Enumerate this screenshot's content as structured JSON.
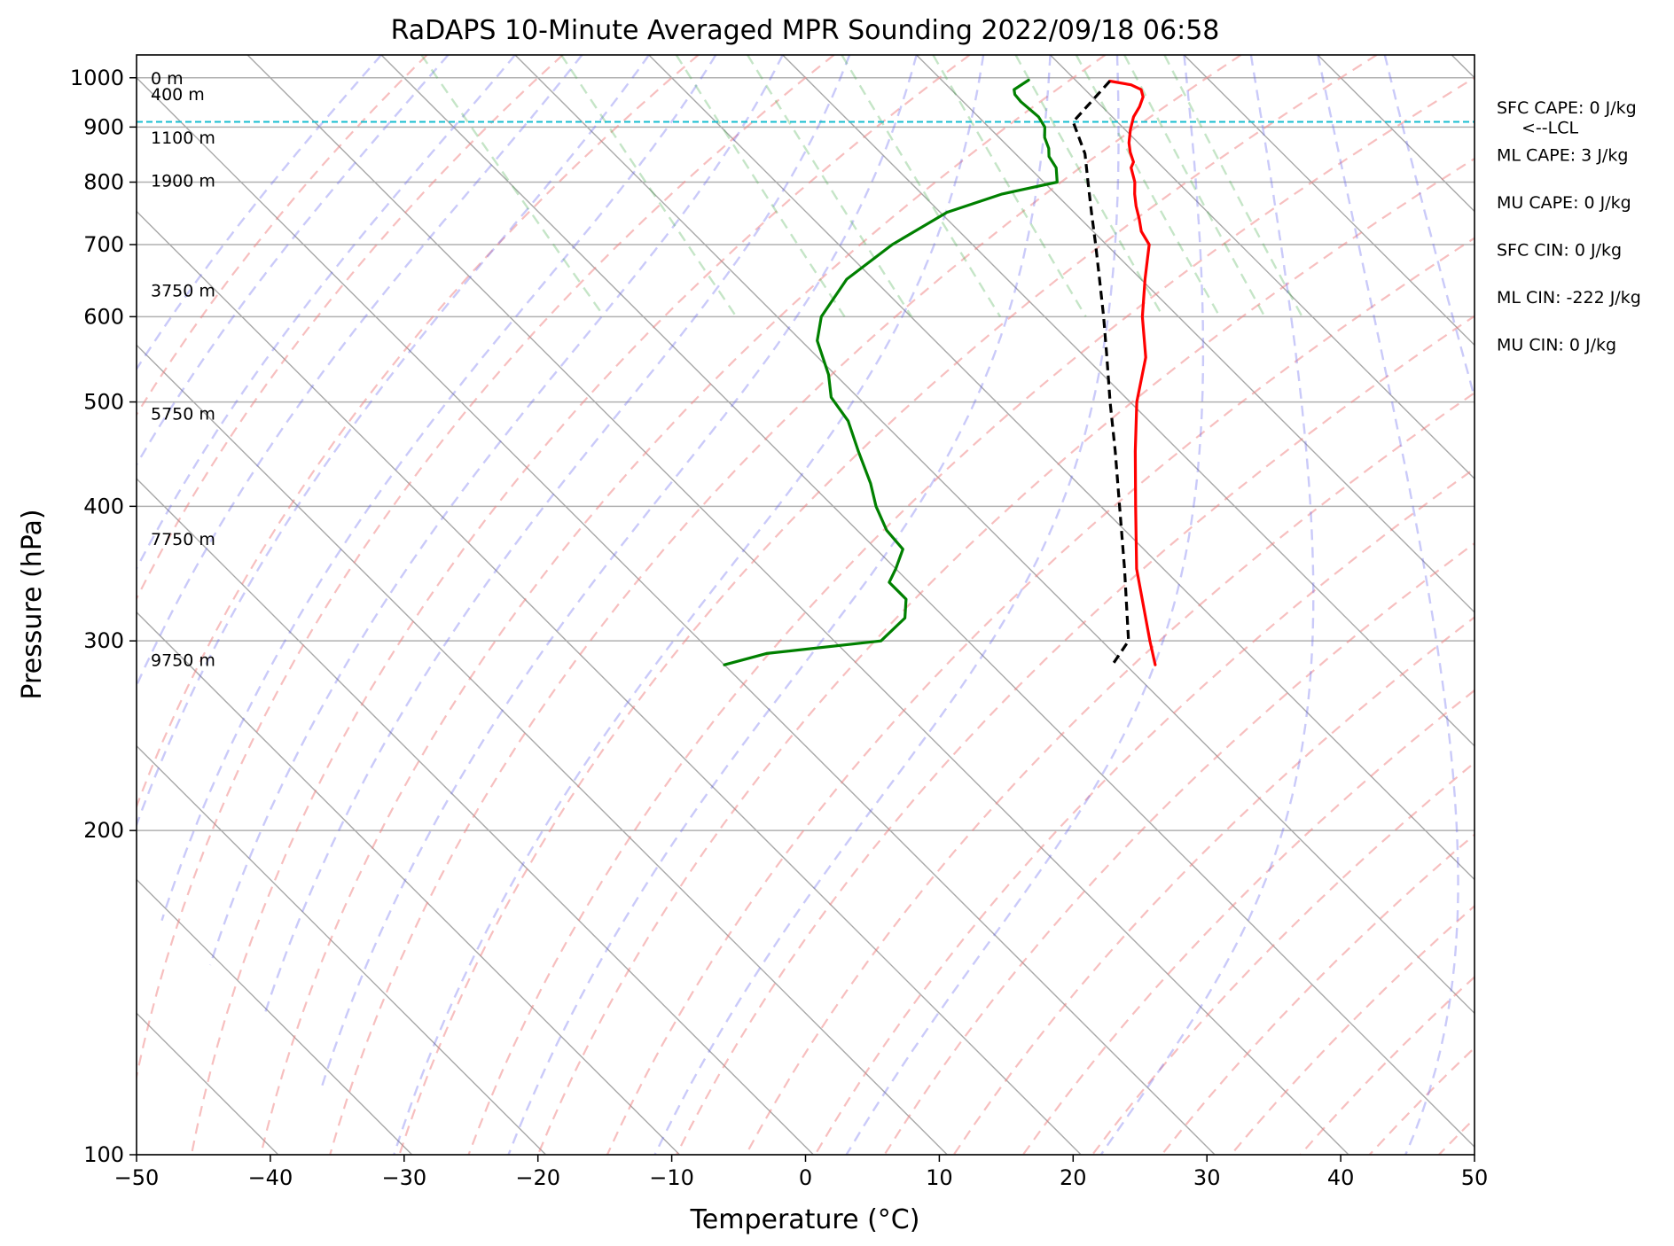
{
  "chart_data": {
    "type": "line",
    "title": "RaDAPS 10-Minute Averaged MPR Sounding 2022/09/18 06:58",
    "xlabel": "Temperature (°C)",
    "ylabel": "Pressure (hPa)",
    "xlim": [
      -50,
      50
    ],
    "ylim": [
      1050,
      100
    ],
    "y_scale": "log",
    "x_ticks": [
      -50,
      -40,
      -30,
      -20,
      -10,
      0,
      10,
      20,
      30,
      40,
      50
    ],
    "x_tick_labels": [
      "−50",
      "−40",
      "−30",
      "−20",
      "−10",
      "0",
      "10",
      "20",
      "30",
      "40",
      "50"
    ],
    "y_ticks": [
      100,
      200,
      300,
      400,
      500,
      600,
      700,
      800,
      900,
      1000
    ],
    "y_tick_labels": [
      "100",
      "200",
      "300",
      "400",
      "500",
      "600",
      "700",
      "800",
      "900",
      "1000"
    ],
    "skew_factor": 35,
    "grid": true,
    "series": [
      {
        "style": "solid",
        "color": "#ff0000",
        "points": [
          {
            "p": 993,
            "t": 22.5
          },
          {
            "p": 985,
            "t": 23.8
          },
          {
            "p": 975,
            "t": 24.2
          },
          {
            "p": 960,
            "t": 23.8
          },
          {
            "p": 940,
            "t": 22.8
          },
          {
            "p": 920,
            "t": 21.6
          },
          {
            "p": 895,
            "t": 20.4
          },
          {
            "p": 870,
            "t": 19.3
          },
          {
            "p": 853,
            "t": 18.7
          },
          {
            "p": 835,
            "t": 18.2
          },
          {
            "p": 825,
            "t": 17.6
          },
          {
            "p": 800,
            "t": 16.8
          },
          {
            "p": 780,
            "t": 15.9
          },
          {
            "p": 760,
            "t": 15.1
          },
          {
            "p": 740,
            "t": 14.4
          },
          {
            "p": 720,
            "t": 13.6
          },
          {
            "p": 700,
            "t": 13.2
          },
          {
            "p": 650,
            "t": 10.3
          },
          {
            "p": 600,
            "t": 7.3
          },
          {
            "p": 550,
            "t": 4.5
          },
          {
            "p": 500,
            "t": 0.5
          },
          {
            "p": 450,
            "t": -3.3
          },
          {
            "p": 400,
            "t": -7.4
          },
          {
            "p": 350,
            "t": -12.0
          },
          {
            "p": 300,
            "t": -16.4
          },
          {
            "p": 285,
            "t": -17.8
          }
        ]
      },
      {
        "style": "solid",
        "color": "#008000",
        "points": [
          {
            "p": 995,
            "t": 16.5
          },
          {
            "p": 975,
            "t": 14.7
          },
          {
            "p": 965,
            "t": 14.4
          },
          {
            "p": 950,
            "t": 14.3
          },
          {
            "p": 920,
            "t": 14.5
          },
          {
            "p": 900,
            "t": 14.2
          },
          {
            "p": 880,
            "t": 13.4
          },
          {
            "p": 860,
            "t": 12.9
          },
          {
            "p": 845,
            "t": 12.3
          },
          {
            "p": 825,
            "t": 12.0
          },
          {
            "p": 800,
            "t": 11.0
          },
          {
            "p": 780,
            "t": 6.0
          },
          {
            "p": 750,
            "t": 0.5
          },
          {
            "p": 700,
            "t": -6.0
          },
          {
            "p": 650,
            "t": -12.0
          },
          {
            "p": 600,
            "t": -16.7
          },
          {
            "p": 570,
            "t": -18.8
          },
          {
            "p": 530,
            "t": -20.5
          },
          {
            "p": 505,
            "t": -22.0
          },
          {
            "p": 480,
            "t": -22.5
          },
          {
            "p": 450,
            "t": -24.0
          },
          {
            "p": 420,
            "t": -25.5
          },
          {
            "p": 400,
            "t": -26.8
          },
          {
            "p": 380,
            "t": -27.8
          },
          {
            "p": 365,
            "t": -28.0
          },
          {
            "p": 350,
            "t": -30.0
          },
          {
            "p": 340,
            "t": -31.5
          },
          {
            "p": 328,
            "t": -31.5
          },
          {
            "p": 315,
            "t": -33.0
          },
          {
            "p": 300,
            "t": -36.5
          },
          {
            "p": 292,
            "t": -46.0
          },
          {
            "p": 285,
            "t": -50.0
          }
        ]
      },
      {
        "style": "dashed",
        "color": "#000000",
        "points": [
          {
            "p": 993,
            "t": 22.5
          },
          {
            "p": 910,
            "t": 16.7
          },
          {
            "p": 850,
            "t": 15.2
          },
          {
            "p": 800,
            "t": 13.3
          },
          {
            "p": 750,
            "t": 11.3
          },
          {
            "p": 700,
            "t": 9.2
          },
          {
            "p": 650,
            "t": 6.9
          },
          {
            "p": 600,
            "t": 4.4
          },
          {
            "p": 550,
            "t": 1.6
          },
          {
            "p": 500,
            "t": -1.5
          },
          {
            "p": 450,
            "t": -4.8
          },
          {
            "p": 400,
            "t": -8.6
          },
          {
            "p": 350,
            "t": -12.9
          },
          {
            "p": 300,
            "t": -18.0
          },
          {
            "p": 285,
            "t": -21.0
          }
        ]
      }
    ],
    "lcl_pressure": 910,
    "lcl_label": "<--LCL",
    "height_labels": [
      {
        "p": 288,
        "text": "9750 m"
      },
      {
        "p": 373,
        "text": "7750 m"
      },
      {
        "p": 488,
        "text": "5750 m"
      },
      {
        "p": 635,
        "text": "3750 m"
      },
      {
        "p": 803,
        "text": "1900 m"
      },
      {
        "p": 880,
        "text": "1100 m"
      },
      {
        "p": 966,
        "text": "400 m"
      },
      {
        "p": 1000,
        "text": "0 m"
      }
    ],
    "stats": [
      "SFC CAPE: 0 J/kg",
      "ML CAPE: 3 J/kg",
      "MU CAPE: 0 J/kg",
      "SFC CIN: 0 J/kg",
      "ML CIN: -222 J/kg",
      "MU CIN: 0 J/kg"
    ]
  }
}
